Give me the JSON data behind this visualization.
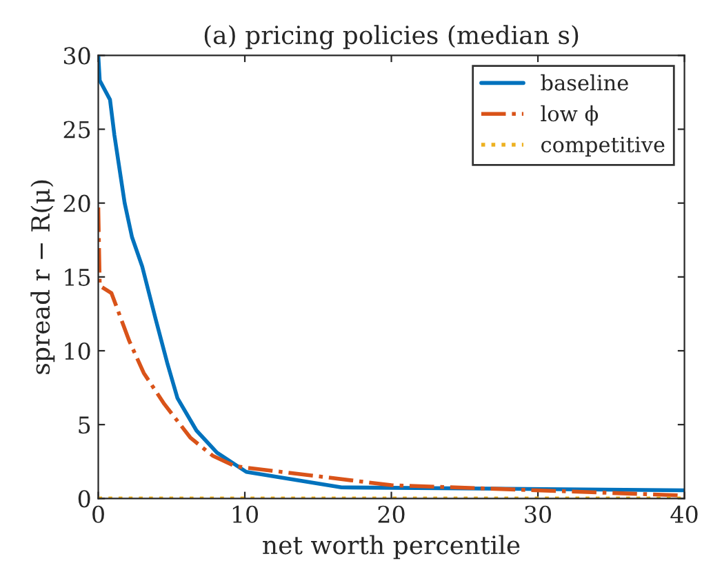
{
  "chart_data": {
    "type": "line",
    "title": "(a) pricing policies (median s)",
    "xlabel": "net worth percentile",
    "ylabel": "spread r − R(μ)",
    "series": [
      {
        "name": "baseline",
        "color": "#0072bd",
        "line_style": "solid",
        "x": [
          0,
          0.1,
          0.8,
          1.1,
          1.8,
          2.3,
          3.0,
          3.9,
          4.7,
          5.4,
          6.7,
          8.1,
          10.1,
          16.6,
          40
        ],
        "values": [
          30,
          28.3,
          27,
          24.6,
          20,
          17.7,
          15.7,
          12.2,
          9.2,
          6.8,
          4.6,
          3.1,
          1.8,
          0.75,
          0.55
        ]
      },
      {
        "name": "low ϕ",
        "color": "#d95319",
        "line_style": "dashdot",
        "x": [
          0,
          0.1,
          0.9,
          2.1,
          3.1,
          4.5,
          6.3,
          7.8,
          9.3,
          10,
          20,
          40
        ],
        "values": [
          19.7,
          14.4,
          13.9,
          10.7,
          8.5,
          6.4,
          4.1,
          2.9,
          2.2,
          2.1,
          0.9,
          0.2
        ]
      },
      {
        "name": "competitive",
        "color": "#edb120",
        "line_style": "dotted",
        "x": [
          0,
          40
        ],
        "values": [
          0,
          0
        ]
      }
    ],
    "xlim": [
      0,
      40
    ],
    "ylim": [
      0,
      30
    ],
    "xticks": [
      0,
      10,
      20,
      30,
      40
    ],
    "yticks": [
      0,
      5,
      10,
      15,
      20,
      25,
      30
    ],
    "grid": false,
    "legend": "top right"
  }
}
